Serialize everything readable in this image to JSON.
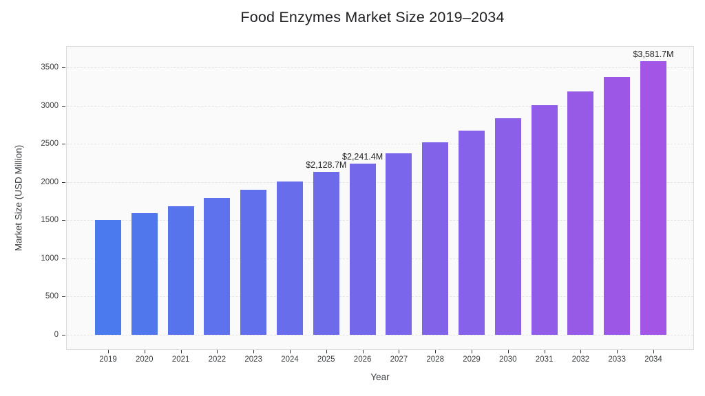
{
  "chart_data": {
    "type": "bar",
    "title": "Food Enzymes Market Size 2019–2034",
    "xlabel": "Year",
    "ylabel": "Market Size (USD Million)",
    "categories": [
      "2019",
      "2020",
      "2021",
      "2022",
      "2023",
      "2024",
      "2025",
      "2026",
      "2027",
      "2028",
      "2029",
      "2030",
      "2031",
      "2032",
      "2033",
      "2034"
    ],
    "values": [
      1500.0,
      1590.5,
      1686.5,
      1788.2,
      1896.1,
      2010.5,
      2128.7,
      2241.4,
      2376.6,
      2519.9,
      2671.8,
      2832.9,
      3003.7,
      3184.8,
      3376.8,
      3581.7
    ],
    "bar_value_labels": [
      "",
      "",
      "",
      "",
      "",
      "",
      "$2,128.7M",
      "$2,241.4M",
      "",
      "",
      "",
      "",
      "",
      "",
      "",
      "$3,581.7M"
    ],
    "y_ticks": [
      0,
      500,
      1000,
      1500,
      2000,
      2500,
      3000,
      3500
    ],
    "ylim": [
      -190,
      3770
    ],
    "grid": "horizontal-dashed",
    "legend": "none",
    "colors": {
      "bar_gradient_start": "#4B79EE",
      "bar_gradient_end": "#A355E6",
      "plot_background": "#fafafa",
      "gridline": "#e3e3e3",
      "axis_text": "#3c4043",
      "title_text": "#202124"
    }
  }
}
